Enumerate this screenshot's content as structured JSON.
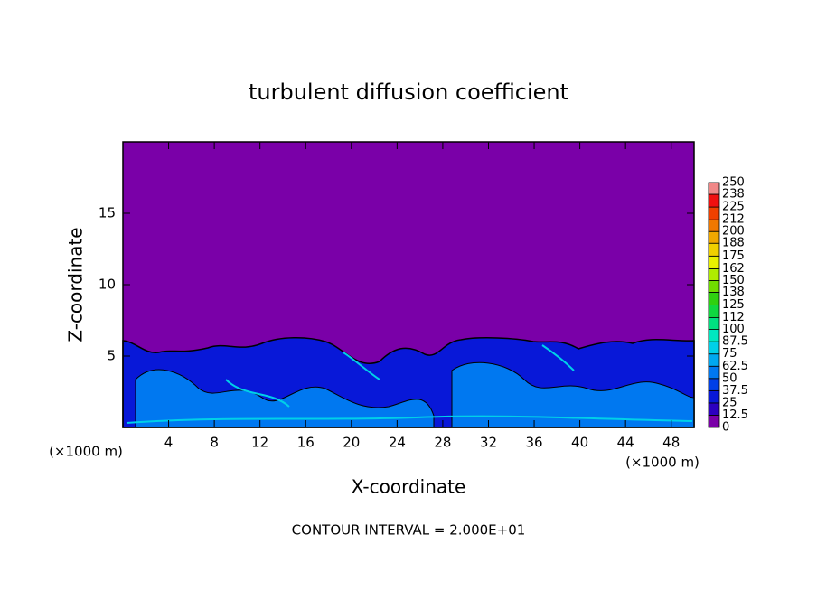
{
  "chart_data": {
    "type": "contour",
    "title": "turbulent diffusion coefficient",
    "xlabel": "X-coordinate",
    "ylabel": "Z-coordinate",
    "xunit": "(×1000 m)",
    "yunit": "(×1000 m)",
    "note": "CONTOUR INTERVAL = 2.000E+01",
    "xlim": [
      0,
      50
    ],
    "xticks": [
      4,
      8,
      12,
      16,
      20,
      24,
      28,
      32,
      36,
      40,
      44,
      48
    ],
    "ylim": [
      0,
      20
    ],
    "yticks": [
      5,
      10,
      15
    ],
    "colorbar": {
      "levels": [
        0,
        12.5,
        25,
        37.5,
        50,
        62.5,
        75,
        87.5,
        100,
        112,
        125,
        138,
        150,
        162,
        175,
        188,
        200,
        212,
        225,
        238,
        250
      ],
      "colors": [
        "#7a00a8",
        "#2c00c0",
        "#0818d8",
        "#0040e8",
        "#0078f0",
        "#00a8f0",
        "#00d0e8",
        "#00e8c0",
        "#00e080",
        "#10d840",
        "#30d010",
        "#70dc00",
        "#b0ec00",
        "#e8f000",
        "#f0d000",
        "#f0a800",
        "#f07800",
        "#f04000",
        "#f01010",
        "#f08888"
      ]
    }
  }
}
